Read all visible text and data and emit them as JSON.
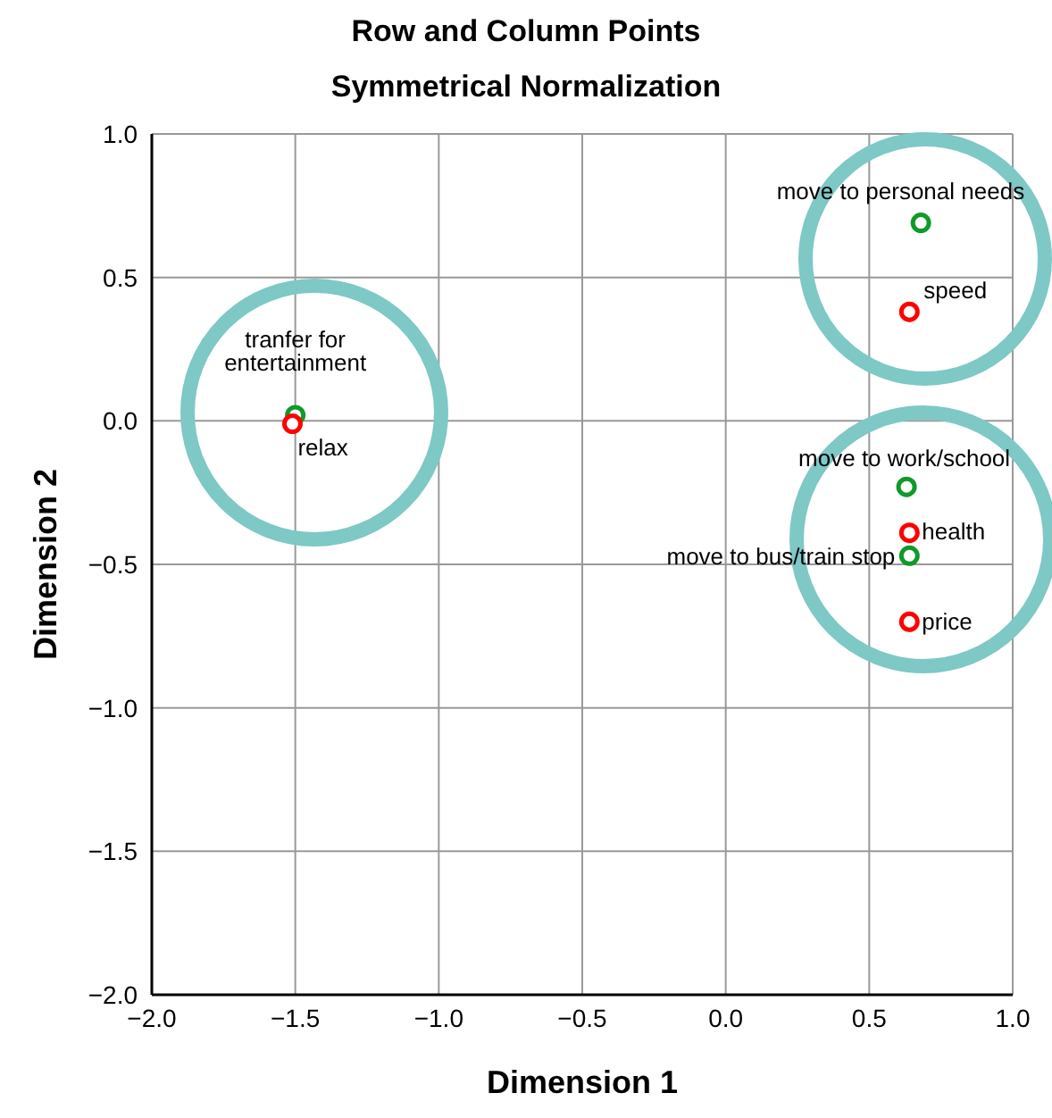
{
  "chart_data": {
    "type": "scatter",
    "title": "Row and Column Points",
    "subtitle": "Symmetrical Normalization",
    "xlabel": "Dimension 1",
    "ylabel": "Dimension 2",
    "xlim": [
      -2,
      1
    ],
    "ylim": [
      -2,
      1
    ],
    "xticks": [
      {
        "value": -2,
        "label": "−2.0"
      },
      {
        "value": -1.5,
        "label": "−1.5"
      },
      {
        "value": -1,
        "label": "−1.0"
      },
      {
        "value": -0.5,
        "label": "−0.5"
      },
      {
        "value": 0,
        "label": "0.0"
      },
      {
        "value": 0.5,
        "label": "0.5"
      },
      {
        "value": 1,
        "label": "1.0"
      }
    ],
    "yticks": [
      {
        "value": -2,
        "label": "−2.0"
      },
      {
        "value": -1.5,
        "label": "−1.5"
      },
      {
        "value": -1,
        "label": "−1.0"
      },
      {
        "value": -0.5,
        "label": "−0.5"
      },
      {
        "value": 0,
        "label": "0.0"
      },
      {
        "value": 0.5,
        "label": "0.5"
      },
      {
        "value": 1,
        "label": "1.0"
      }
    ],
    "grid": true,
    "marker": "circle",
    "legend": false,
    "series": [
      {
        "color": "#0f9a2a",
        "x": [
          -1.5,
          0.68,
          0.63,
          0.64
        ],
        "values": [
          0.02,
          0.69,
          -0.23,
          -0.47
        ]
      },
      {
        "color": "#ff0000",
        "x": [
          -1.51,
          0.64,
          0.64,
          0.64
        ],
        "values": [
          -0.01,
          0.38,
          -0.39,
          -0.7
        ]
      }
    ],
    "annotations": [
      {
        "text": "tranfer for entertainment",
        "x": -1.5,
        "y": 0.02
      },
      {
        "text": "relax",
        "x": -1.51,
        "y": -0.01
      },
      {
        "text": "move to personal needs",
        "x": 0.68,
        "y": 0.69
      },
      {
        "text": "speed",
        "x": 0.64,
        "y": 0.38
      },
      {
        "text": "move to work/school",
        "x": 0.63,
        "y": -0.23
      },
      {
        "text": "health",
        "x": 0.64,
        "y": -0.39
      },
      {
        "text": "move to bus/train stop",
        "x": 0.64,
        "y": -0.47
      },
      {
        "text": "price",
        "x": 0.64,
        "y": -0.7
      }
    ]
  }
}
